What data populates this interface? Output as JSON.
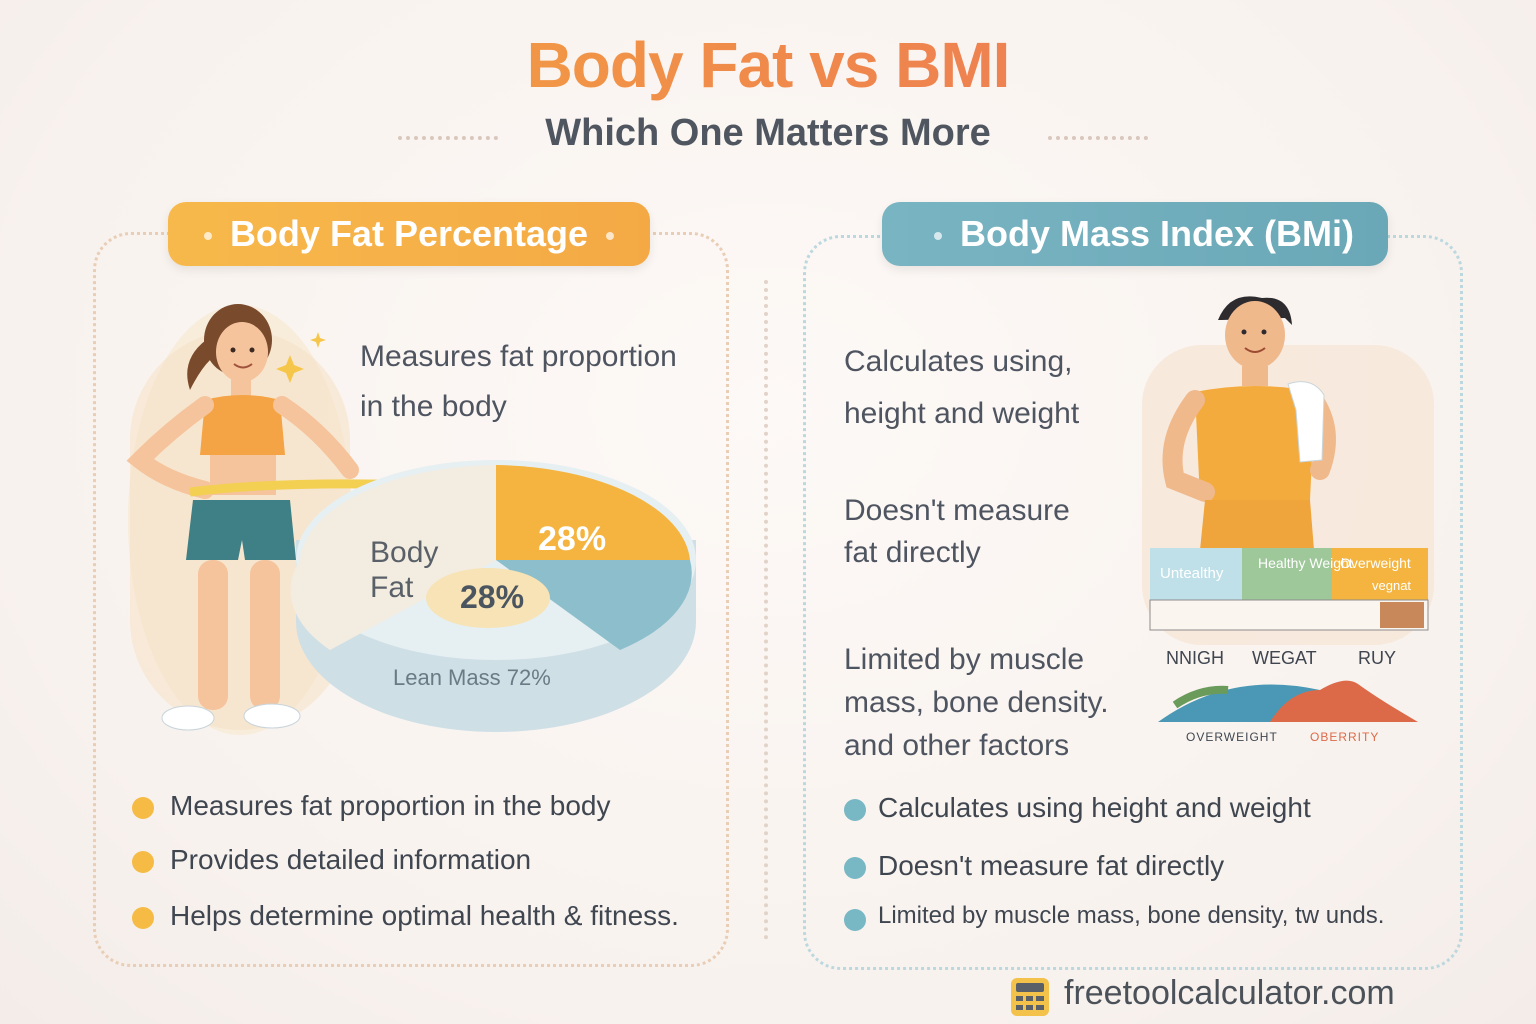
{
  "header": {
    "title": "Body Fat vs BMI",
    "subtitle": "Which One Matters More"
  },
  "left_panel": {
    "pill_label": "Body Fat Percentage",
    "intro": [
      "Measures fat proportion",
      "in the body"
    ],
    "pie": {
      "body_label_1": "Body",
      "body_label_2": "Fat",
      "center_value": "28%",
      "slice_value": "28%",
      "lean_label": "Lean Mass 72%"
    },
    "bullets": [
      "Measures fat proportion in the body",
      "Provides detailed information",
      "Helps determine optimal health & fitness."
    ]
  },
  "right_panel": {
    "pill_label": "Body Mass Index (BMi)",
    "points": [
      [
        "Calculates using,",
        "height and weight"
      ],
      [
        "Doesn't measure",
        "fat directly"
      ],
      [
        "Limited by muscle",
        "mass, bone density.",
        "and other factors"
      ]
    ],
    "scale": {
      "cells": [
        "Untealthy",
        "Healthy Weight",
        "Overweight"
      ],
      "cell_sub": [
        "",
        "",
        "vegnat"
      ],
      "under_labels": [
        "NNIGH",
        "WEGAT",
        "RUY"
      ],
      "curve_labels": [
        "OVERWEIGHT",
        "OBERRITY"
      ]
    },
    "bullets": [
      "Calculates using height and weight",
      "Doesn't measure fat directly",
      "Limited by muscle mass, bone density, tw unds."
    ]
  },
  "footer": {
    "site": "freetoolcalculator.com",
    "icon": "calculator-icon"
  },
  "colors": {
    "orange": "#f6bb45",
    "teal": "#78b7c4",
    "title_start": "#f4b23a",
    "title_end": "#ea6f5c"
  }
}
